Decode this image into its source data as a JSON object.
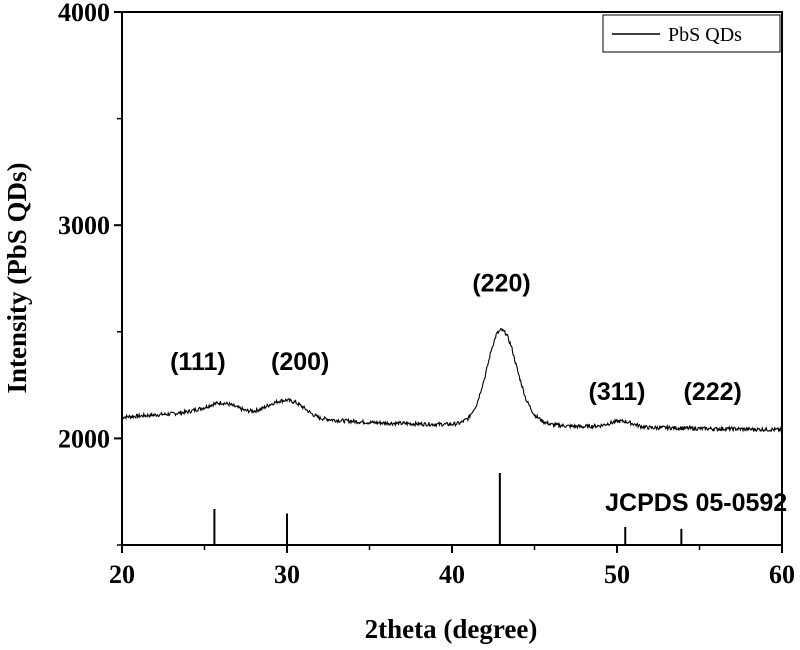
{
  "chart_data": {
    "type": "line",
    "title": "",
    "xlabel": "2theta (degree)",
    "ylabel": "Intensity (PbS QDs)",
    "xlim": [
      20,
      60
    ],
    "ylim": [
      1500,
      4000
    ],
    "x_ticks": [
      20,
      30,
      40,
      50,
      60
    ],
    "y_ticks": [
      2000,
      3000,
      4000
    ],
    "grid": false,
    "legend": {
      "position": "top-right",
      "entries": [
        "PbS QDs"
      ]
    },
    "series": [
      {
        "name": "PbS QDs",
        "color": "#000000",
        "x": [
          20,
          21,
          22,
          23,
          24,
          25,
          25.5,
          26,
          26.5,
          27,
          27.5,
          28,
          28.5,
          29,
          29.5,
          30,
          30.5,
          31,
          31.5,
          32,
          33,
          34,
          35,
          36,
          37,
          38,
          39,
          40,
          40.5,
          41,
          41.5,
          42,
          42.4,
          42.7,
          43,
          43.3,
          43.6,
          44,
          44.5,
          45,
          45.5,
          46,
          47,
          48,
          49,
          49.5,
          50,
          50.5,
          51,
          51.5,
          52,
          53,
          54,
          55,
          56,
          57,
          58,
          59,
          60
        ],
        "y": [
          2100,
          2105,
          2110,
          2115,
          2125,
          2145,
          2160,
          2168,
          2160,
          2145,
          2130,
          2128,
          2140,
          2160,
          2175,
          2180,
          2170,
          2145,
          2115,
          2095,
          2085,
          2080,
          2075,
          2072,
          2070,
          2068,
          2066,
          2066,
          2072,
          2095,
          2160,
          2290,
          2420,
          2490,
          2510,
          2490,
          2430,
          2310,
          2180,
          2110,
          2080,
          2065,
          2058,
          2055,
          2060,
          2070,
          2080,
          2080,
          2068,
          2055,
          2050,
          2050,
          2048,
          2046,
          2045,
          2045,
          2043,
          2042,
          2040
        ]
      }
    ],
    "annotations": [
      {
        "text": "(111)",
        "x": 24.6,
        "y": 2320
      },
      {
        "text": "(200)",
        "x": 30.8,
        "y": 2320
      },
      {
        "text": "(220)",
        "x": 43.0,
        "y": 2690
      },
      {
        "text": "(311)",
        "x": 50.0,
        "y": 2180
      },
      {
        "text": "(222)",
        "x": 55.8,
        "y": 2180
      },
      {
        "text": "JCPDS 05-0592",
        "x": 54.8,
        "y": 1660
      }
    ],
    "reference_lines": {
      "label": "JCPDS 05-0592",
      "positions": [
        25.6,
        30.0,
        42.9,
        50.5,
        53.9
      ],
      "relative_heights": [
        0.4,
        0.35,
        0.8,
        0.2,
        0.18
      ]
    }
  }
}
